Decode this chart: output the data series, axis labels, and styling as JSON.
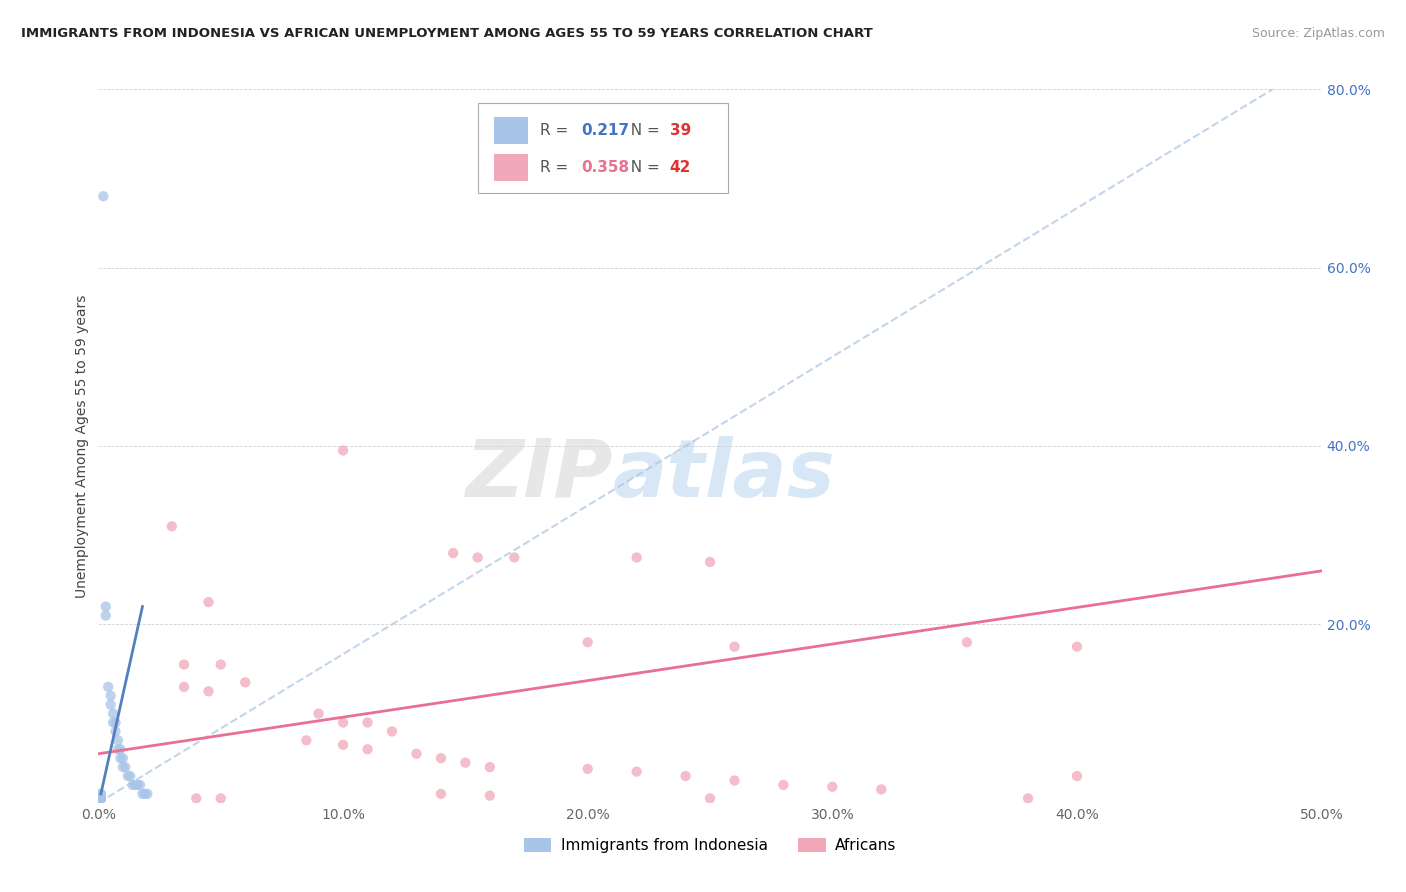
{
  "title": "IMMIGRANTS FROM INDONESIA VS AFRICAN UNEMPLOYMENT AMONG AGES 55 TO 59 YEARS CORRELATION CHART",
  "source": "Source: ZipAtlas.com",
  "ylabel": "Unemployment Among Ages 55 to 59 years",
  "watermark_zip": "ZIP",
  "watermark_atlas": "atlas",
  "legend1_r": "0.217",
  "legend1_n": "39",
  "legend2_r": "0.358",
  "legend2_n": "42",
  "blue_color": "#a8c4e8",
  "pink_color": "#f0a8b8",
  "blue_line_color": "#5580c0",
  "pink_line_color": "#e87090",
  "blue_scatter": [
    [
      0.002,
      0.68
    ],
    [
      0.003,
      0.22
    ],
    [
      0.003,
      0.21
    ],
    [
      0.004,
      0.13
    ],
    [
      0.005,
      0.12
    ],
    [
      0.005,
      0.11
    ],
    [
      0.006,
      0.1
    ],
    [
      0.006,
      0.09
    ],
    [
      0.007,
      0.09
    ],
    [
      0.007,
      0.08
    ],
    [
      0.008,
      0.07
    ],
    [
      0.008,
      0.06
    ],
    [
      0.009,
      0.06
    ],
    [
      0.009,
      0.05
    ],
    [
      0.01,
      0.05
    ],
    [
      0.01,
      0.04
    ],
    [
      0.011,
      0.04
    ],
    [
      0.012,
      0.03
    ],
    [
      0.013,
      0.03
    ],
    [
      0.014,
      0.02
    ],
    [
      0.015,
      0.02
    ],
    [
      0.016,
      0.02
    ],
    [
      0.017,
      0.02
    ],
    [
      0.018,
      0.01
    ],
    [
      0.019,
      0.01
    ],
    [
      0.02,
      0.01
    ],
    [
      0.001,
      0.01
    ],
    [
      0.001,
      0.01
    ],
    [
      0.001,
      0.005
    ],
    [
      0.001,
      0.005
    ],
    [
      0.001,
      0.005
    ],
    [
      0.001,
      0.005
    ],
    [
      0.001,
      0.005
    ],
    [
      0.001,
      0.005
    ],
    [
      0.001,
      0.005
    ],
    [
      0.001,
      0.005
    ],
    [
      0.001,
      0.005
    ],
    [
      0.001,
      0.005
    ],
    [
      0.001,
      0.005
    ]
  ],
  "pink_scatter": [
    [
      0.1,
      0.395
    ],
    [
      0.145,
      0.28
    ],
    [
      0.155,
      0.275
    ],
    [
      0.17,
      0.275
    ],
    [
      0.22,
      0.275
    ],
    [
      0.25,
      0.27
    ],
    [
      0.03,
      0.31
    ],
    [
      0.045,
      0.225
    ],
    [
      0.2,
      0.18
    ],
    [
      0.26,
      0.175
    ],
    [
      0.355,
      0.18
    ],
    [
      0.4,
      0.175
    ],
    [
      0.035,
      0.155
    ],
    [
      0.05,
      0.155
    ],
    [
      0.06,
      0.135
    ],
    [
      0.035,
      0.13
    ],
    [
      0.045,
      0.125
    ],
    [
      0.09,
      0.1
    ],
    [
      0.1,
      0.09
    ],
    [
      0.11,
      0.09
    ],
    [
      0.12,
      0.08
    ],
    [
      0.085,
      0.07
    ],
    [
      0.1,
      0.065
    ],
    [
      0.11,
      0.06
    ],
    [
      0.13,
      0.055
    ],
    [
      0.14,
      0.05
    ],
    [
      0.15,
      0.045
    ],
    [
      0.16,
      0.04
    ],
    [
      0.2,
      0.038
    ],
    [
      0.22,
      0.035
    ],
    [
      0.24,
      0.03
    ],
    [
      0.26,
      0.025
    ],
    [
      0.28,
      0.02
    ],
    [
      0.3,
      0.018
    ],
    [
      0.32,
      0.015
    ],
    [
      0.14,
      0.01
    ],
    [
      0.16,
      0.008
    ],
    [
      0.25,
      0.005
    ],
    [
      0.38,
      0.005
    ],
    [
      0.4,
      0.03
    ],
    [
      0.04,
      0.005
    ],
    [
      0.05,
      0.005
    ]
  ],
  "xlim": [
    0.0,
    0.5
  ],
  "ylim": [
    0.0,
    0.8
  ],
  "xticks": [
    0.0,
    0.1,
    0.2,
    0.3,
    0.4,
    0.5
  ],
  "yticks": [
    0.0,
    0.2,
    0.4,
    0.6,
    0.8
  ],
  "xticklabels": [
    "0.0%",
    "10.0%",
    "20.0%",
    "30.0%",
    "40.0%",
    "50.0%"
  ],
  "ytick_right_labels": [
    "",
    "20.0%",
    "40.0%",
    "60.0%",
    "80.0%"
  ],
  "blue_trend_x": [
    0.0,
    0.48
  ],
  "blue_trend_y": [
    0.0,
    0.8
  ],
  "pink_trend_x": [
    0.0,
    0.5
  ],
  "pink_trend_y": [
    0.055,
    0.26
  ]
}
